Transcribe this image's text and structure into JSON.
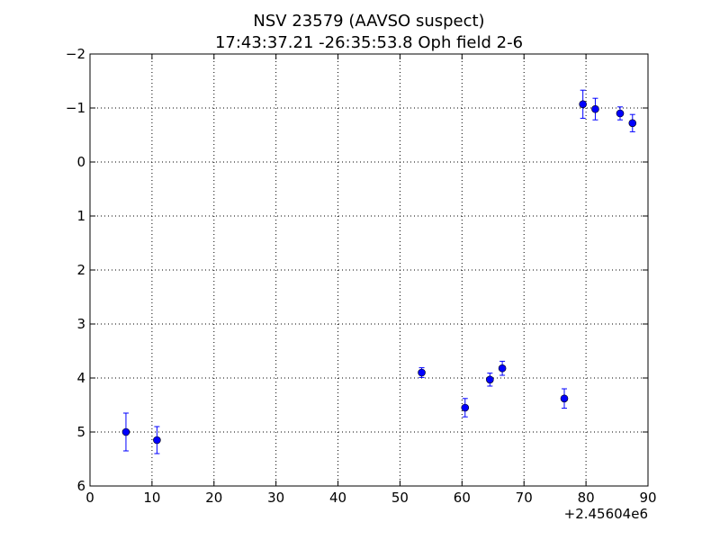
{
  "chart_data": {
    "type": "scatter",
    "title": "NSV 23579 (AAVSO suspect)",
    "subtitle": "17:43:37.21 -26:35:53.8 Oph field 2-6",
    "xlabel": "",
    "ylabel": "",
    "x_offset_label": "+2.45604e6",
    "xlim": [
      0,
      90
    ],
    "ylim": [
      6,
      -2
    ],
    "y_inverted": true,
    "grid": true,
    "x_ticks": [
      0,
      10,
      20,
      30,
      40,
      50,
      60,
      70,
      80,
      90
    ],
    "x_tick_labels": [
      "0",
      "10",
      "20",
      "30",
      "40",
      "50",
      "60",
      "70",
      "80",
      "90"
    ],
    "y_ticks": [
      -2,
      -1,
      0,
      1,
      2,
      3,
      4,
      5,
      6
    ],
    "y_tick_labels": [
      "−2",
      "−1",
      "0",
      "1",
      "2",
      "3",
      "4",
      "5",
      "6"
    ],
    "marker_color": "#0000ff",
    "points": [
      {
        "x": 5.8,
        "y": 5.0,
        "err": 0.35
      },
      {
        "x": 10.8,
        "y": 5.15,
        "err": 0.25
      },
      {
        "x": 53.5,
        "y": 3.9,
        "err": 0.09
      },
      {
        "x": 60.5,
        "y": 4.55,
        "err": 0.17
      },
      {
        "x": 64.5,
        "y": 4.03,
        "err": 0.12
      },
      {
        "x": 66.5,
        "y": 3.82,
        "err": 0.13
      },
      {
        "x": 76.5,
        "y": 4.38,
        "err": 0.18
      },
      {
        "x": 79.5,
        "y": -1.07,
        "err": 0.26
      },
      {
        "x": 81.5,
        "y": -0.98,
        "err": 0.2
      },
      {
        "x": 85.5,
        "y": -0.9,
        "err": 0.12
      },
      {
        "x": 87.5,
        "y": -0.72,
        "err": 0.16
      }
    ]
  }
}
